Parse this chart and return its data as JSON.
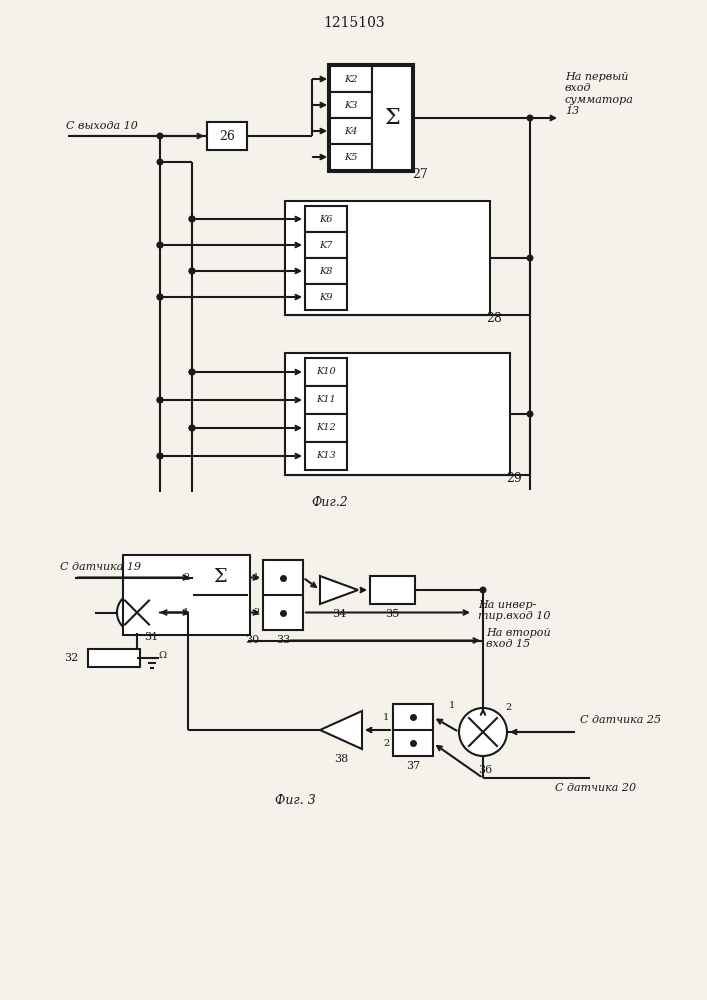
{
  "title": "1215103",
  "fig2_label": "Фиг.2",
  "fig3_label": "Фиг. 3",
  "bg_color": "#f5f2ec",
  "line_color": "#1a1a1a",
  "fig2": {
    "input_label": "С выхода 10",
    "output_label": "На первый\nвход\nсумматора\n13",
    "b26": "26",
    "b27": "27",
    "b28": "28",
    "b29": "29",
    "k2": "K2",
    "k3": "K3",
    "k4": "K4",
    "k5": "K5",
    "k6": "K6",
    "k7": "K7",
    "k8": "K8",
    "k9": "K9",
    "k10": "K10",
    "k11": "K11",
    "k12": "K12",
    "k13": "K13",
    "sigma": "Σ"
  },
  "fig3": {
    "label_19": "С датчика 19",
    "label_25": "С датчика 25",
    "label_20": "С датчика 20",
    "label_invert": "На инвер-\nтир.вход 10",
    "label_second": "На второй\nвход 15",
    "b30": "30",
    "b31": "31",
    "b32": "32",
    "b33": "33",
    "b34": "34",
    "b35": "35",
    "b36": "36",
    "b37": "37",
    "b38": "38",
    "sigma": "Σ",
    "num1_b33": "1",
    "num2_b33": "2",
    "num1_b36": "1",
    "num2_b36": "2",
    "num1_b37": "1",
    "num2_b37": "2",
    "num2_b30": "2",
    "num1_b30": "1"
  }
}
